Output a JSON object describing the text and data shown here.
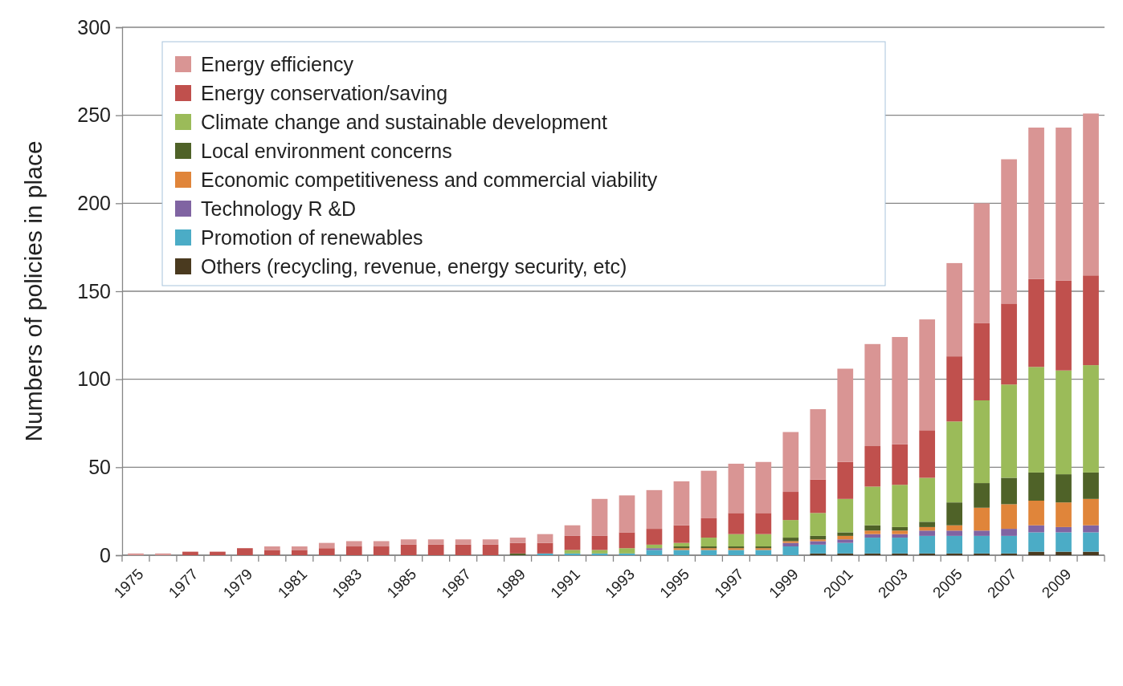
{
  "chart_data": {
    "type": "bar",
    "stacked": true,
    "ylabel": "Numbers of policies in place",
    "categories": [
      "1975",
      null,
      "1977",
      null,
      "1979",
      null,
      "1981",
      null,
      "1983",
      null,
      "1985",
      null,
      "1987",
      null,
      "1989",
      null,
      "1991",
      null,
      "1993",
      null,
      "1995",
      null,
      "1997",
      null,
      "1999",
      null,
      "2001",
      null,
      "2003",
      null,
      "2005",
      null,
      "2007",
      null,
      "2009",
      null
    ],
    "ylim": [
      0,
      300
    ],
    "yticks": [
      0,
      50,
      100,
      150,
      200,
      250,
      300
    ],
    "grid": "y",
    "legend": "top left",
    "series": [
      {
        "name": "Others (recycling, revenue, energy security, etc)",
        "color": "#4a3a1f",
        "values": [
          0,
          0,
          0,
          0,
          0,
          0,
          0,
          0,
          0,
          0,
          0,
          0,
          0,
          0,
          0,
          0,
          0,
          0,
          0,
          0,
          0,
          0,
          0,
          0,
          0,
          1,
          1,
          1,
          1,
          1,
          1,
          1,
          1,
          2,
          2,
          2
        ]
      },
      {
        "name": "Promotion of renewables",
        "color": "#4bacc6",
        "values": [
          0,
          0,
          0,
          0,
          0,
          0,
          0,
          0,
          0,
          0,
          0,
          0,
          0,
          0,
          0,
          1,
          1,
          1,
          1,
          3,
          3,
          3,
          3,
          3,
          5,
          5,
          6,
          9,
          9,
          10,
          10,
          10,
          10,
          11,
          11,
          11
        ]
      },
      {
        "name": "Technology R &D",
        "color": "#8064a2",
        "values": [
          0,
          0,
          0,
          0,
          0,
          0,
          0,
          0,
          0,
          0,
          0,
          0,
          0,
          0,
          0,
          0,
          0,
          0,
          0,
          1,
          0,
          0,
          0,
          0,
          2,
          2,
          2,
          2,
          2,
          3,
          3,
          3,
          4,
          4,
          3,
          4
        ]
      },
      {
        "name": "Economic competitiveness and commercial viability",
        "color": "#e0853a",
        "values": [
          0,
          0,
          0,
          0,
          0,
          0,
          0,
          0,
          0,
          0,
          0,
          0,
          0,
          0,
          0,
          0,
          0,
          0,
          0,
          0,
          1,
          1,
          1,
          1,
          1,
          1,
          2,
          2,
          2,
          2,
          3,
          13,
          14,
          14,
          14,
          15
        ]
      },
      {
        "name": "Local environment concerns",
        "color": "#4f6228",
        "values": [
          0,
          0,
          0,
          0,
          0,
          0,
          0,
          0,
          0,
          0,
          0,
          0,
          0,
          0,
          1,
          0,
          0,
          0,
          0,
          0,
          1,
          1,
          1,
          1,
          2,
          2,
          2,
          3,
          2,
          3,
          13,
          14,
          15,
          16,
          16,
          15
        ]
      },
      {
        "name": "Climate change and sustainable development",
        "color": "#9bbb59",
        "values": [
          0,
          0,
          0,
          0,
          0,
          0,
          0,
          0,
          0,
          0,
          0,
          0,
          0,
          0,
          0,
          0,
          2,
          2,
          3,
          2,
          2,
          5,
          7,
          7,
          10,
          13,
          19,
          22,
          24,
          25,
          46,
          47,
          53,
          60,
          59,
          61
        ]
      },
      {
        "name": "Energy conservation/saving",
        "color": "#c0504d",
        "values": [
          0,
          0,
          2,
          2,
          4,
          3,
          3,
          4,
          5,
          5,
          6,
          6,
          6,
          6,
          6,
          6,
          8,
          8,
          9,
          9,
          10,
          11,
          12,
          12,
          16,
          19,
          21,
          23,
          23,
          27,
          37,
          44,
          46,
          50,
          51,
          51
        ]
      },
      {
        "name": "Energy efficiency",
        "color": "#d99594",
        "values": [
          1,
          1,
          0,
          0,
          0,
          2,
          2,
          3,
          3,
          3,
          3,
          3,
          3,
          3,
          3,
          5,
          6,
          21,
          21,
          22,
          25,
          27,
          28,
          29,
          34,
          40,
          53,
          58,
          61,
          63,
          53,
          68,
          82,
          86,
          87,
          92
        ]
      }
    ]
  }
}
